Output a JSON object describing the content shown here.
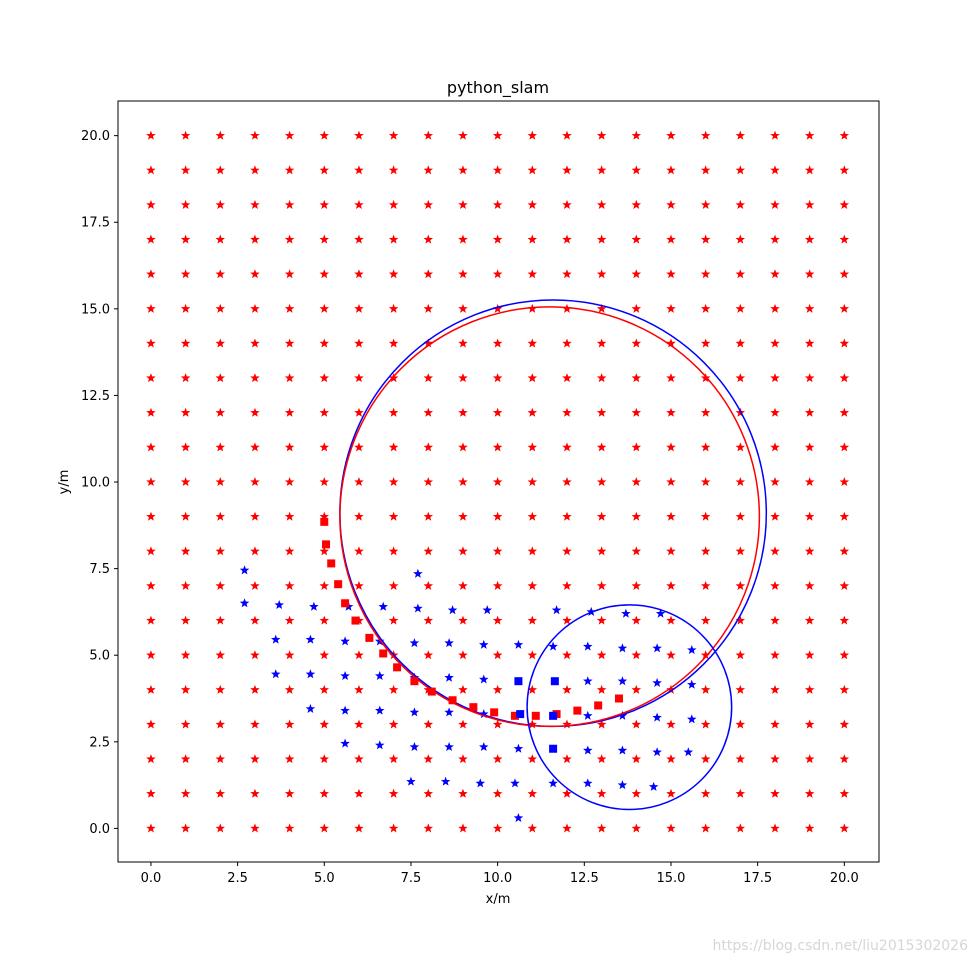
{
  "chart_data": {
    "type": "scatter",
    "title": "python_slam",
    "xlabel": "x/m",
    "ylabel": "y/m",
    "xlim": [
      -0.95,
      21.0
    ],
    "ylim": [
      -0.97,
      21.0
    ],
    "xticks": [
      0.0,
      2.5,
      5.0,
      7.5,
      10.0,
      12.5,
      15.0,
      17.5,
      20.0
    ],
    "yticks": [
      0.0,
      2.5,
      5.0,
      7.5,
      10.0,
      12.5,
      15.0,
      17.5,
      20.0
    ],
    "xtick_labels": [
      "0.0",
      "2.5",
      "5.0",
      "7.5",
      "10.0",
      "12.5",
      "15.0",
      "17.5",
      "20.0"
    ],
    "ytick_labels": [
      "0.0",
      "2.5",
      "5.0",
      "7.5",
      "10.0",
      "12.5",
      "15.0",
      "17.5",
      "20.0"
    ],
    "grid": false,
    "legend": "none",
    "colors": {
      "true": "#ff0000",
      "estimate": "#0000ff"
    },
    "landmarks_true": {
      "marker": "star",
      "x_range": [
        0,
        20
      ],
      "y_range": [
        0,
        20
      ],
      "step": 1
    },
    "landmarks_observed": {
      "marker": "star",
      "points": [
        [
          2.7,
          7.45
        ],
        [
          2.7,
          6.5
        ],
        [
          3.7,
          6.45
        ],
        [
          4.7,
          6.4
        ],
        [
          5.7,
          6.4
        ],
        [
          6.7,
          6.4
        ],
        [
          7.7,
          6.35
        ],
        [
          8.7,
          6.3
        ],
        [
          9.7,
          6.3
        ],
        [
          7.7,
          7.35
        ],
        [
          11.7,
          6.3
        ],
        [
          12.7,
          6.25
        ],
        [
          13.7,
          6.2
        ],
        [
          14.7,
          6.2
        ],
        [
          3.6,
          5.45
        ],
        [
          4.6,
          5.45
        ],
        [
          5.6,
          5.4
        ],
        [
          6.6,
          5.4
        ],
        [
          7.6,
          5.35
        ],
        [
          8.6,
          5.35
        ],
        [
          9.6,
          5.3
        ],
        [
          10.6,
          5.3
        ],
        [
          11.6,
          5.25
        ],
        [
          12.6,
          5.25
        ],
        [
          13.6,
          5.2
        ],
        [
          14.6,
          5.2
        ],
        [
          15.6,
          5.15
        ],
        [
          3.6,
          4.45
        ],
        [
          4.6,
          4.45
        ],
        [
          5.6,
          4.4
        ],
        [
          6.6,
          4.4
        ],
        [
          7.6,
          4.35
        ],
        [
          8.6,
          4.35
        ],
        [
          9.6,
          4.3
        ],
        [
          12.6,
          4.25
        ],
        [
          13.6,
          4.25
        ],
        [
          14.6,
          4.2
        ],
        [
          15.6,
          4.15
        ],
        [
          4.6,
          3.45
        ],
        [
          5.6,
          3.4
        ],
        [
          6.6,
          3.4
        ],
        [
          7.6,
          3.35
        ],
        [
          8.6,
          3.35
        ],
        [
          9.6,
          3.3
        ],
        [
          12.6,
          3.25
        ],
        [
          13.6,
          3.25
        ],
        [
          14.6,
          3.2
        ],
        [
          15.6,
          3.15
        ],
        [
          5.6,
          2.45
        ],
        [
          6.6,
          2.4
        ],
        [
          7.6,
          2.35
        ],
        [
          8.6,
          2.35
        ],
        [
          9.6,
          2.35
        ],
        [
          10.6,
          2.3
        ],
        [
          12.6,
          2.25
        ],
        [
          13.6,
          2.25
        ],
        [
          14.6,
          2.2
        ],
        [
          15.5,
          2.2
        ],
        [
          7.5,
          1.35
        ],
        [
          8.5,
          1.35
        ],
        [
          9.5,
          1.3
        ],
        [
          10.5,
          1.3
        ],
        [
          11.6,
          1.3
        ],
        [
          12.6,
          1.3
        ],
        [
          13.6,
          1.25
        ],
        [
          14.5,
          1.2
        ],
        [
          10.6,
          0.3
        ]
      ]
    },
    "robot_true": {
      "marker": "square",
      "points": [
        [
          5.0,
          8.85
        ],
        [
          5.05,
          8.2
        ],
        [
          5.2,
          7.65
        ],
        [
          5.4,
          7.05
        ],
        [
          5.6,
          6.5
        ],
        [
          5.9,
          6.0
        ],
        [
          6.3,
          5.5
        ],
        [
          6.7,
          5.05
        ],
        [
          7.1,
          4.65
        ],
        [
          7.6,
          4.25
        ],
        [
          8.1,
          3.95
        ],
        [
          8.7,
          3.7
        ],
        [
          9.3,
          3.5
        ],
        [
          9.9,
          3.35
        ],
        [
          10.5,
          3.25
        ],
        [
          11.1,
          3.25
        ],
        [
          11.7,
          3.3
        ],
        [
          12.3,
          3.4
        ],
        [
          12.9,
          3.55
        ],
        [
          13.5,
          3.75
        ]
      ]
    },
    "robot_estimate": {
      "marker": "square",
      "points": [
        [
          10.6,
          4.25
        ],
        [
          11.65,
          4.25
        ],
        [
          10.65,
          3.3
        ],
        [
          11.6,
          3.25
        ],
        [
          11.6,
          2.3
        ]
      ]
    },
    "trajectory_true_circle": {
      "center": [
        11.5,
        9.0
      ],
      "radius": 6.05
    },
    "trajectory_estimate_circle": {
      "center": [
        11.6,
        9.1
      ],
      "radius": 6.15
    },
    "uncertainty_ellipse": {
      "center": [
        13.8,
        3.5
      ],
      "radius": 2.95
    }
  },
  "watermark": "https://blog.csdn.net/liu2015302026"
}
